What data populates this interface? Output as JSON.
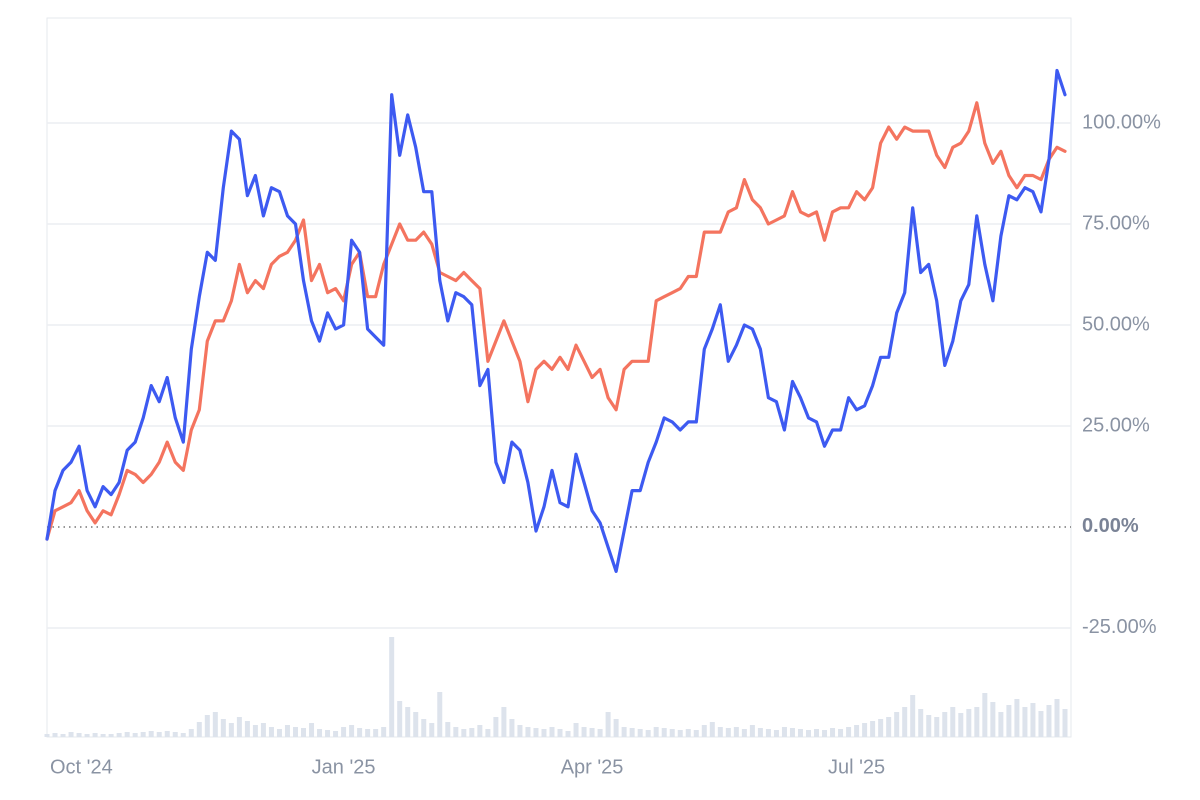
{
  "chart_data": {
    "type": "line",
    "categories": [
      "Oct '24",
      null,
      null,
      null,
      null,
      null,
      null,
      null,
      null,
      null,
      null,
      null,
      null,
      null,
      null,
      null,
      null,
      null,
      null,
      null,
      null,
      null,
      null,
      null,
      null,
      null,
      null,
      null,
      null,
      null,
      null,
      null,
      null,
      null,
      null,
      null,
      null,
      "Jan '25",
      null,
      null,
      null,
      null,
      null,
      null,
      null,
      null,
      null,
      null,
      null,
      null,
      null,
      null,
      null,
      null,
      null,
      null,
      null,
      null,
      null,
      null,
      null,
      null,
      null,
      null,
      null,
      null,
      null,
      null,
      "Apr '25",
      null,
      null,
      null,
      null,
      null,
      null,
      null,
      null,
      null,
      null,
      null,
      null,
      null,
      null,
      null,
      null,
      null,
      null,
      null,
      null,
      null,
      null,
      null,
      null,
      null,
      null,
      null,
      null,
      null,
      null,
      null,
      null,
      "Jul '25",
      null,
      null,
      null,
      null,
      null,
      null,
      null,
      null,
      null,
      null,
      null,
      null,
      null,
      null,
      null,
      null,
      null,
      null,
      null,
      null,
      null,
      null,
      null,
      null,
      null,
      null
    ],
    "series": [
      {
        "color": "#3d5af1",
        "values": [
          -3,
          9,
          14,
          16,
          20,
          9,
          5,
          10,
          8,
          11,
          19,
          21,
          27,
          35,
          31,
          37,
          27,
          21,
          44,
          57,
          68,
          66,
          84,
          98,
          96,
          82,
          87,
          77,
          84,
          83,
          77,
          75,
          61,
          51,
          46,
          53,
          49,
          50,
          71,
          68,
          49,
          47,
          45,
          107,
          92,
          102,
          94,
          83,
          83,
          61,
          51,
          58,
          57,
          55,
          35,
          39,
          16,
          11,
          21,
          19,
          11,
          -1,
          5,
          14,
          6,
          5,
          18,
          11,
          4,
          1,
          -5,
          -11,
          -1,
          9,
          9,
          16,
          21,
          27,
          26,
          24,
          26,
          26,
          44,
          49,
          55,
          41,
          45,
          50,
          49,
          44,
          32,
          31,
          24,
          36,
          32,
          27,
          26,
          20,
          24,
          24,
          32,
          29,
          30,
          35,
          42,
          42,
          53,
          58,
          79,
          63,
          65,
          56,
          40,
          46,
          56,
          60,
          77,
          65,
          56,
          72,
          82,
          81,
          84,
          83,
          78,
          91,
          113,
          107
        ]
      },
      {
        "color": "#f4745f",
        "values": [
          -3,
          4,
          5,
          6,
          9,
          4,
          1,
          4,
          3,
          8,
          14,
          13,
          11,
          13,
          16,
          21,
          16,
          14,
          24,
          29,
          46,
          51,
          51,
          56,
          65,
          58,
          61,
          59,
          65,
          67,
          68,
          71,
          76,
          61,
          65,
          58,
          59,
          56,
          65,
          68,
          57,
          57,
          65,
          70,
          75,
          71,
          71,
          73,
          70,
          63,
          62,
          61,
          63,
          61,
          59,
          41,
          46,
          51,
          46,
          41,
          31,
          39,
          41,
          39,
          42,
          39,
          45,
          41,
          37,
          39,
          32,
          29,
          39,
          41,
          41,
          41,
          56,
          57,
          58,
          59,
          62,
          62,
          73,
          73,
          73,
          78,
          79,
          86,
          81,
          79,
          75,
          76,
          77,
          83,
          78,
          77,
          78,
          71,
          78,
          79,
          79,
          83,
          81,
          84,
          95,
          99,
          96,
          99,
          98,
          98,
          98,
          92,
          89,
          94,
          95,
          98,
          105,
          95,
          90,
          93,
          87,
          84,
          87,
          87,
          86,
          91,
          94,
          93
        ]
      }
    ],
    "volume": [
      3,
      4,
      3,
      5,
      4,
      3,
      4,
      3,
      3,
      4,
      5,
      4,
      5,
      6,
      5,
      6,
      5,
      4,
      8,
      15,
      22,
      25,
      18,
      14,
      20,
      16,
      12,
      14,
      10,
      8,
      12,
      10,
      9,
      14,
      8,
      7,
      6,
      10,
      12,
      9,
      8,
      8,
      10,
      100,
      36,
      30,
      25,
      18,
      14,
      45,
      15,
      10,
      8,
      9,
      12,
      8,
      20,
      30,
      18,
      12,
      10,
      9,
      8,
      10,
      8,
      6,
      14,
      10,
      9,
      8,
      25,
      18,
      10,
      9,
      8,
      7,
      10,
      9,
      8,
      7,
      8,
      7,
      12,
      15,
      10,
      9,
      10,
      8,
      12,
      9,
      8,
      7,
      10,
      9,
      8,
      7,
      8,
      7,
      9,
      8,
      10,
      12,
      14,
      16,
      18,
      20,
      25,
      30,
      42,
      28,
      22,
      20,
      25,
      30,
      24,
      28,
      30,
      44,
      35,
      25,
      32,
      38,
      30,
      34,
      26,
      32,
      38,
      28
    ],
    "volume_color": "#dde3ec",
    "ylim": [
      -52,
      126
    ],
    "yticks": [
      {
        "value": -25,
        "label": "-25.00%"
      },
      {
        "value": 0,
        "label": "0.00%"
      },
      {
        "value": 25,
        "label": "25.00%"
      },
      {
        "value": 50,
        "label": "50.00%"
      },
      {
        "value": 75,
        "label": "75.00%"
      },
      {
        "value": 100,
        "label": "100.00%"
      }
    ],
    "grid": true
  }
}
